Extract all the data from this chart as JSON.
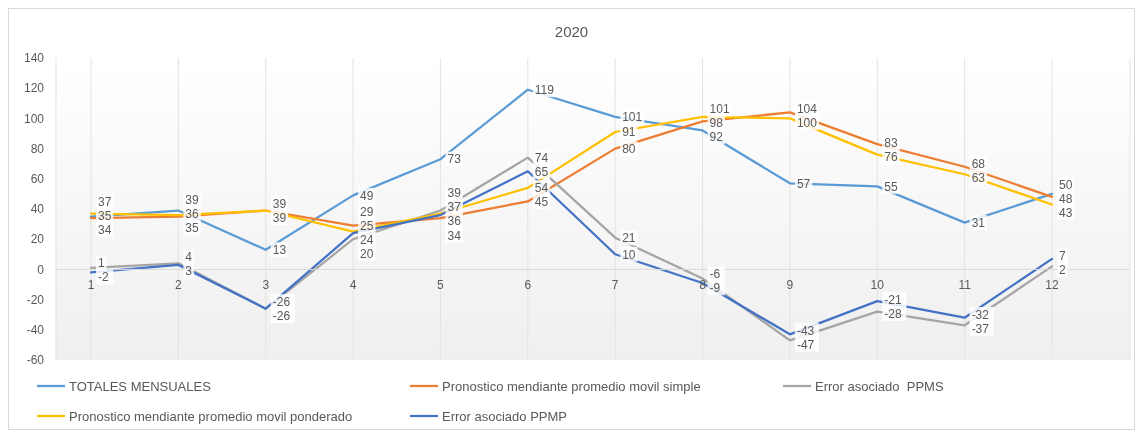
{
  "chart_data": {
    "type": "line",
    "title": "2020",
    "categories": [
      "1",
      "2",
      "3",
      "4",
      "5",
      "6",
      "7",
      "8",
      "9",
      "10",
      "11",
      "12"
    ],
    "series": [
      {
        "name": "TOTALES MENSUALES",
        "color": "#5b9bd5",
        "values": [
          35,
          39,
          13,
          49,
          73,
          119,
          101,
          92,
          57,
          55,
          31,
          50
        ]
      },
      {
        "name": "Pronostico mendiante promedio movil simple",
        "color": "#ed7d31",
        "values": [
          34,
          35,
          39,
          29,
          34,
          45,
          80,
          98,
          104,
          83,
          68,
          48
        ]
      },
      {
        "name": "Error asociado  PPMS",
        "color": "#a5a5a5",
        "values": [
          1,
          4,
          -26,
          20,
          39,
          74,
          21,
          -6,
          -47,
          -28,
          -37,
          2
        ]
      },
      {
        "name": "Pronostico mendiante promedio movil ponderado",
        "color": "#ffc000",
        "values": [
          37,
          36,
          39,
          25,
          37,
          54,
          91,
          101,
          100,
          76,
          63,
          43
        ]
      },
      {
        "name": "Error asociado PPMP",
        "color": "#4472c4",
        "values": [
          -2,
          3,
          -26,
          24,
          36,
          65,
          10,
          -9,
          -43,
          -21,
          -32,
          7
        ]
      }
    ],
    "ylim": [
      -60,
      140
    ],
    "yticks": [
      -60,
      -40,
      -20,
      0,
      20,
      40,
      60,
      80,
      100,
      120,
      140
    ],
    "grid": "x",
    "legend": "bottom",
    "marker": "none",
    "data_labels": true
  }
}
